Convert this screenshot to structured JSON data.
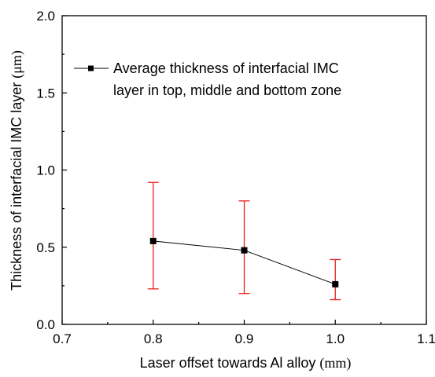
{
  "chart_data": {
    "type": "line",
    "x": [
      0.8,
      0.9,
      1.0
    ],
    "series": [
      {
        "name_line1": "Average thickness of interfacial IMC",
        "name_line2": "layer in top, middle and bottom zone",
        "values": [
          0.54,
          0.48,
          0.26
        ],
        "err_low": [
          0.23,
          0.2,
          0.16
        ],
        "err_high": [
          0.92,
          0.8,
          0.42
        ]
      }
    ],
    "xlabel": "Laser offset towards Al alloy",
    "xlabel_unit": "(mm)",
    "ylabel": "Thickness of interfacial IMC layer",
    "ylabel_unit": "(μm)",
    "xlim": [
      0.7,
      1.1
    ],
    "ylim": [
      0.0,
      2.0
    ],
    "x_ticks": [
      "0.7",
      "0.8",
      "0.9",
      "1.0",
      "1.1"
    ],
    "y_ticks": [
      "0.0",
      "0.5",
      "1.0",
      "1.5",
      "2.0"
    ],
    "grid": false,
    "legend_position": "top-left",
    "colors": {
      "line": "#000000",
      "error_bar": "#e8201c",
      "marker": "#000000"
    }
  }
}
